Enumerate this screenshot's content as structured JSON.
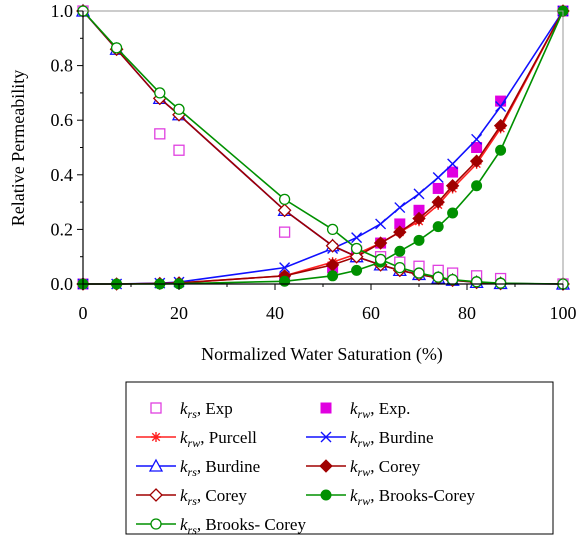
{
  "chart_data": {
    "type": "line",
    "xlabel": "Normalized Water Saturation (%)",
    "ylabel": "Relative Permeability",
    "xlim": [
      0,
      100
    ],
    "ylim": [
      0,
      1
    ],
    "x_ticks": [
      "0",
      "20",
      "40",
      "60",
      "80",
      "100"
    ],
    "y_ticks": [
      "0.0",
      "0.2",
      "0.4",
      "0.6",
      "0.8",
      "1.0"
    ],
    "grid": false,
    "legend_position": "bottom",
    "series": [
      {
        "name": "Exp",
        "phase": "rs",
        "color": "#e040e0",
        "marker": "square-open",
        "line": false,
        "x": [
          0,
          16,
          20,
          42,
          57,
          62,
          66,
          70,
          74,
          77,
          82,
          87,
          100
        ],
        "y": [
          1.0,
          0.55,
          0.49,
          0.19,
          0.12,
          0.1,
          0.08,
          0.065,
          0.05,
          0.04,
          0.03,
          0.02,
          0.0
        ]
      },
      {
        "name": "Exp.",
        "phase": "rw",
        "color": "#e000e0",
        "marker": "square-filled",
        "line": false,
        "x": [
          0,
          42,
          52,
          57,
          62,
          66,
          70,
          74,
          77,
          82,
          87,
          100
        ],
        "y": [
          0.0,
          0.02,
          0.06,
          0.1,
          0.15,
          0.22,
          0.27,
          0.35,
          0.41,
          0.5,
          0.67,
          1.0
        ]
      },
      {
        "name": "Purcell",
        "phase": "rw",
        "color": "#ff2020",
        "marker": "asterisk",
        "line": true,
        "x": [
          0,
          7,
          16,
          20,
          42,
          52,
          57,
          62,
          66,
          70,
          74,
          77,
          82,
          87,
          100
        ],
        "y": [
          0.0,
          0.0,
          0.002,
          0.004,
          0.03,
          0.08,
          0.11,
          0.15,
          0.19,
          0.23,
          0.29,
          0.35,
          0.44,
          0.57,
          1.0
        ]
      },
      {
        "name": "Burdine",
        "phase": "rw",
        "color": "#1010ff",
        "marker": "star-filled",
        "line": true,
        "x": [
          0,
          7,
          16,
          20,
          42,
          52,
          57,
          62,
          66,
          70,
          74,
          77,
          82,
          87,
          100
        ],
        "y": [
          0.0,
          0.0,
          0.003,
          0.007,
          0.06,
          0.13,
          0.17,
          0.22,
          0.28,
          0.33,
          0.39,
          0.44,
          0.53,
          0.65,
          1.0
        ]
      },
      {
        "name": "Burdine",
        "phase": "rs",
        "color": "#1010ff",
        "marker": "triangle-open",
        "line": true,
        "x": [
          0,
          7,
          16,
          20,
          42,
          52,
          57,
          62,
          66,
          70,
          74,
          77,
          82,
          87,
          100
        ],
        "y": [
          1.0,
          0.86,
          0.68,
          0.62,
          0.27,
          0.14,
          0.1,
          0.07,
          0.05,
          0.035,
          0.022,
          0.014,
          0.006,
          0.002,
          0.0
        ]
      },
      {
        "name": "Corey",
        "phase": "rw",
        "color": "#a00000",
        "marker": "diamond-filled",
        "line": true,
        "x": [
          0,
          7,
          16,
          20,
          42,
          52,
          57,
          62,
          66,
          70,
          74,
          77,
          82,
          87,
          100
        ],
        "y": [
          0.0,
          0.0,
          0.002,
          0.004,
          0.03,
          0.07,
          0.1,
          0.15,
          0.19,
          0.24,
          0.3,
          0.36,
          0.45,
          0.58,
          1.0
        ]
      },
      {
        "name": "Corey",
        "phase": "rs",
        "color": "#a00000",
        "marker": "diamond-open",
        "line": true,
        "x": [
          0,
          7,
          16,
          20,
          42,
          52,
          57,
          62,
          66,
          70,
          74,
          77,
          82,
          87,
          100
        ],
        "y": [
          1.0,
          0.86,
          0.68,
          0.62,
          0.27,
          0.14,
          0.1,
          0.07,
          0.05,
          0.035,
          0.022,
          0.014,
          0.006,
          0.002,
          0.0
        ]
      },
      {
        "name": "Brooks-Corey",
        "phase": "rw",
        "color": "#009000",
        "marker": "circle-filled",
        "line": true,
        "x": [
          0,
          7,
          16,
          20,
          42,
          52,
          57,
          62,
          66,
          70,
          74,
          77,
          82,
          87,
          100
        ],
        "y": [
          0.0,
          0.0,
          0.0,
          0.001,
          0.01,
          0.03,
          0.05,
          0.08,
          0.12,
          0.16,
          0.21,
          0.26,
          0.36,
          0.49,
          1.0
        ]
      },
      {
        "name": "Brooks- Corey",
        "phase": "rs",
        "color": "#009000",
        "marker": "circle-open",
        "line": true,
        "x": [
          0,
          7,
          16,
          20,
          42,
          52,
          57,
          62,
          66,
          70,
          74,
          77,
          82,
          87,
          100
        ],
        "y": [
          1.0,
          0.865,
          0.7,
          0.64,
          0.31,
          0.2,
          0.13,
          0.09,
          0.06,
          0.04,
          0.025,
          0.016,
          0.008,
          0.003,
          0.0
        ]
      }
    ]
  },
  "legend": {
    "items": [
      {
        "k": "k",
        "sub": "rs",
        "label": ", Exp"
      },
      {
        "k": "k",
        "sub": "rw",
        "label": ", Exp."
      },
      {
        "k": "k",
        "sub": "rw",
        "label": ", Purcell"
      },
      {
        "k": "k",
        "sub": "rw",
        "label": ", Burdine"
      },
      {
        "k": "k",
        "sub": "rs",
        "label": ", Burdine"
      },
      {
        "k": "k",
        "sub": "rw",
        "label": ", Corey"
      },
      {
        "k": "k",
        "sub": "rs",
        "label": ", Corey"
      },
      {
        "k": "k",
        "sub": "rw",
        "label": ", Brooks-Corey"
      },
      {
        "k": "k",
        "sub": "rs",
        "label": ", Brooks- Corey"
      }
    ]
  }
}
